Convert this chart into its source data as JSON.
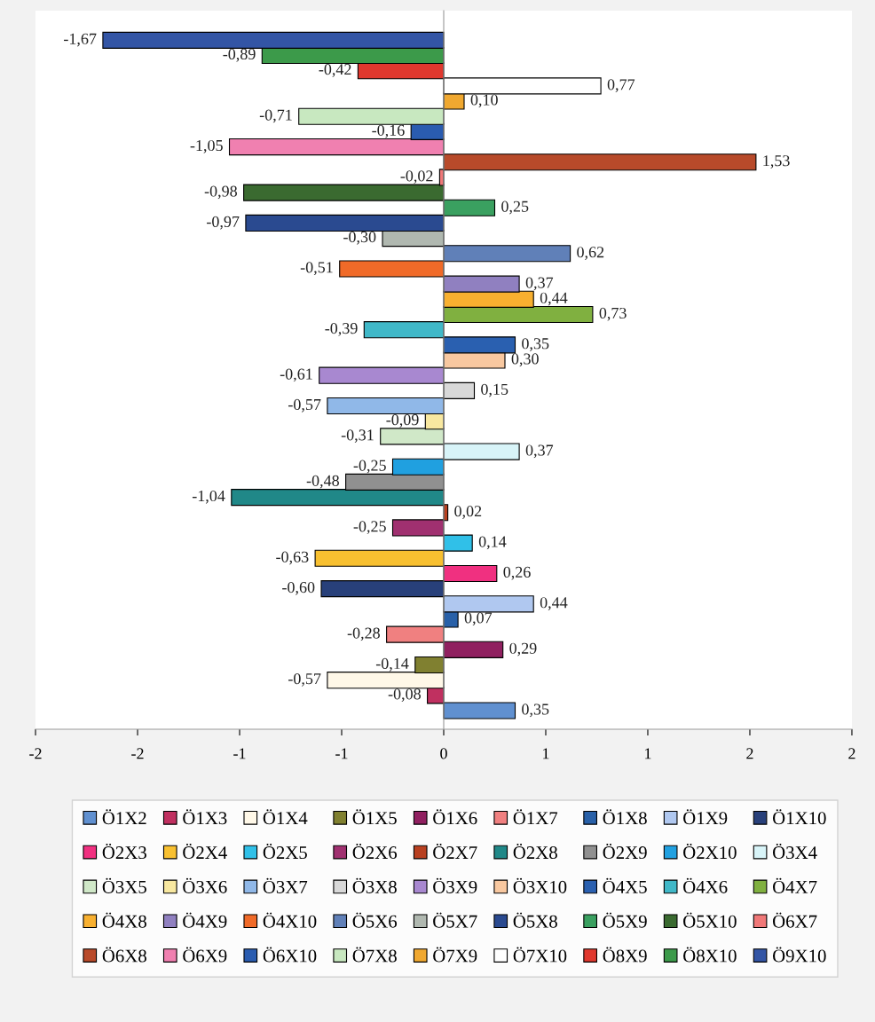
{
  "chart_data": {
    "type": "bar",
    "orientation": "horizontal",
    "categories": [
      null
    ],
    "series": [
      {
        "name": "Ö1X2",
        "color": "#6090d0",
        "values": [
          0.35
        ],
        "value_labels": [
          "0,35"
        ]
      },
      {
        "name": "Ö1X3",
        "color": "#c03060",
        "values": [
          -0.08
        ],
        "value_labels": [
          "-0,08"
        ]
      },
      {
        "name": "Ö1X4",
        "color": "#fff8e8",
        "values": [
          -0.57
        ],
        "value_labels": [
          "-0,57"
        ]
      },
      {
        "name": "Ö1X5",
        "color": "#808030",
        "values": [
          -0.14
        ],
        "value_labels": [
          "-0,14"
        ]
      },
      {
        "name": "Ö1X6",
        "color": "#902060",
        "values": [
          0.29
        ],
        "value_labels": [
          "0,29"
        ]
      },
      {
        "name": "Ö1X7",
        "color": "#f08080",
        "values": [
          -0.28
        ],
        "value_labels": [
          "-0,28"
        ]
      },
      {
        "name": "Ö1X8",
        "color": "#2860a8",
        "values": [
          0.07
        ],
        "value_labels": [
          "0,07"
        ]
      },
      {
        "name": "Ö1X9",
        "color": "#b0c8f0",
        "values": [
          0.44
        ],
        "value_labels": [
          "0,44"
        ]
      },
      {
        "name": "Ö1X10",
        "color": "#28407a",
        "values": [
          -0.6
        ],
        "value_labels": [
          "-0,60"
        ]
      },
      {
        "name": "Ö2X3",
        "color": "#f03080",
        "values": [
          0.26
        ],
        "value_labels": [
          "0,26"
        ]
      },
      {
        "name": "Ö2X4",
        "color": "#f8c030",
        "values": [
          -0.63
        ],
        "value_labels": [
          "-0,63"
        ]
      },
      {
        "name": "Ö2X5",
        "color": "#30c0e8",
        "values": [
          0.14
        ],
        "value_labels": [
          "0,14"
        ]
      },
      {
        "name": "Ö2X6",
        "color": "#a03070",
        "values": [
          -0.25
        ],
        "value_labels": [
          "-0,25"
        ]
      },
      {
        "name": "Ö2X7",
        "color": "#b84020",
        "values": [
          0.02
        ],
        "value_labels": [
          "0,02"
        ]
      },
      {
        "name": "Ö2X8",
        "color": "#208888",
        "values": [
          -1.04
        ],
        "value_labels": [
          "-1,04"
        ]
      },
      {
        "name": "Ö2X9",
        "color": "#909090",
        "values": [
          -0.48
        ],
        "value_labels": [
          "-0,48"
        ]
      },
      {
        "name": "Ö2X10",
        "color": "#20a0e0",
        "values": [
          -0.25
        ],
        "value_labels": [
          "-0,25"
        ]
      },
      {
        "name": "Ö3X4",
        "color": "#d8f4f8",
        "values": [
          0.37
        ],
        "value_labels": [
          "0,37"
        ]
      },
      {
        "name": "Ö3X5",
        "color": "#d0e8c8",
        "values": [
          -0.31
        ],
        "value_labels": [
          "-0,31"
        ]
      },
      {
        "name": "Ö3X6",
        "color": "#f8e8a0",
        "values": [
          -0.09
        ],
        "value_labels": [
          "-0,09"
        ]
      },
      {
        "name": "Ö3X7",
        "color": "#90b8e8",
        "values": [
          -0.57
        ],
        "value_labels": [
          "-0,57"
        ]
      },
      {
        "name": "Ö3X8",
        "color": "#d8d8d8",
        "values": [
          0.15
        ],
        "value_labels": [
          "0,15"
        ]
      },
      {
        "name": "Ö3X9",
        "color": "#a888d0",
        "values": [
          -0.61
        ],
        "value_labels": [
          "-0,61"
        ]
      },
      {
        "name": "Ö3X10",
        "color": "#f8c8a0",
        "values": [
          0.3
        ],
        "value_labels": [
          "0,30"
        ]
      },
      {
        "name": "Ö4X5",
        "color": "#2a60b0",
        "values": [
          0.35
        ],
        "value_labels": [
          "0,35"
        ]
      },
      {
        "name": "Ö4X6",
        "color": "#40b8c8",
        "values": [
          -0.39
        ],
        "value_labels": [
          "-0,39"
        ]
      },
      {
        "name": "Ö4X7",
        "color": "#80b040",
        "values": [
          0.73
        ],
        "value_labels": [
          "0,73"
        ]
      },
      {
        "name": "Ö4X8",
        "color": "#f8b030",
        "values": [
          0.44
        ],
        "value_labels": [
          "0,44"
        ]
      },
      {
        "name": "Ö4X9",
        "color": "#9080c0",
        "values": [
          0.37
        ],
        "value_labels": [
          "0,37"
        ]
      },
      {
        "name": "Ö4X10",
        "color": "#f06a28",
        "values": [
          -0.51
        ],
        "value_labels": [
          "-0,51"
        ]
      },
      {
        "name": "Ö5X6",
        "color": "#6080b8",
        "values": [
          0.62
        ],
        "value_labels": [
          "0,62"
        ]
      },
      {
        "name": "Ö5X7",
        "color": "#b0b8b0",
        "values": [
          -0.3
        ],
        "value_labels": [
          "-0,30"
        ]
      },
      {
        "name": "Ö5X8",
        "color": "#2a4a90",
        "values": [
          -0.97
        ],
        "value_labels": [
          "-0,97"
        ]
      },
      {
        "name": "Ö5X9",
        "color": "#3aa060",
        "values": [
          0.25
        ],
        "value_labels": [
          "0,25"
        ]
      },
      {
        "name": "Ö5X10",
        "color": "#3a6a30",
        "values": [
          -0.98
        ],
        "value_labels": [
          "-0,98"
        ]
      },
      {
        "name": "Ö6X7",
        "color": "#f07878",
        "values": [
          -0.02
        ],
        "value_labels": [
          "-0,02"
        ]
      },
      {
        "name": "Ö6X8",
        "color": "#b84a2a",
        "values": [
          1.53
        ],
        "value_labels": [
          "1,53"
        ]
      },
      {
        "name": "Ö6X9",
        "color": "#f080b0",
        "values": [
          -1.05
        ],
        "value_labels": [
          "-1,05"
        ]
      },
      {
        "name": "Ö6X10",
        "color": "#2a5cb0",
        "values": [
          -0.16
        ],
        "value_labels": [
          "-0,16"
        ]
      },
      {
        "name": "Ö7X8",
        "color": "#c8e8c0",
        "values": [
          -0.71
        ],
        "value_labels": [
          "-0,71"
        ]
      },
      {
        "name": "Ö7X9",
        "color": "#f0a830",
        "values": [
          0.1
        ],
        "value_labels": [
          "0,10"
        ]
      },
      {
        "name": "Ö7X10",
        "color": "#ffffff",
        "values": [
          0.77
        ],
        "value_labels": [
          "0,77"
        ]
      },
      {
        "name": "Ö8X9",
        "color": "#e0382e",
        "values": [
          -0.42
        ],
        "value_labels": [
          "-0,42"
        ]
      },
      {
        "name": "Ö8X10",
        "color": "#3c9a4a",
        "values": [
          -0.89
        ],
        "value_labels": [
          "-0,89"
        ]
      },
      {
        "name": "Ö9X10",
        "color": "#3355a5",
        "values": [
          -1.67
        ],
        "value_labels": [
          "-1,67"
        ]
      }
    ],
    "xlim": [
      -2,
      2
    ],
    "xticks": [
      -2,
      {
        "value": -1.5,
        "label": "-2"
      },
      -1,
      {
        "value": -0.5,
        "label": "-1"
      },
      0,
      {
        "value": 0.5,
        "label": "1"
      },
      1,
      {
        "value": 1.5,
        "label": "2"
      },
      2
    ],
    "tick_labels": "x",
    "legend": "bottom"
  }
}
